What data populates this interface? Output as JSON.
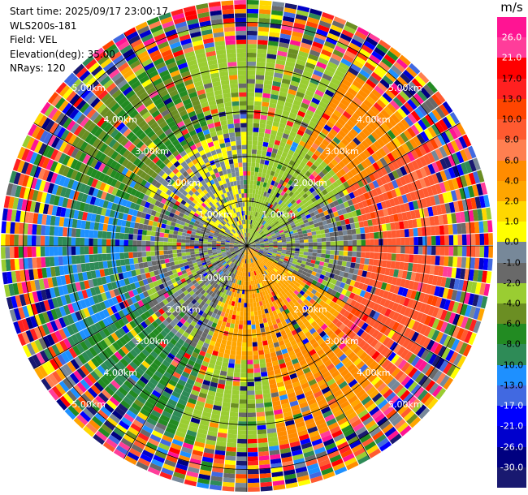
{
  "header": {
    "start_time": "Start time: 2025/09/17 23:00:17",
    "instrument": "WLS200s-181",
    "field": "Field: VEL",
    "elevation": "Elevation(deg): 35.00",
    "nrays": "NRays: 120"
  },
  "chart_data": {
    "type": "heatmap",
    "projection": "polar-ppi",
    "field": "VEL",
    "units": "m/s",
    "n_rays": 120,
    "elevation_deg": 35.0,
    "range_km": [
      0,
      5.5
    ],
    "range_ring_km": [
      1,
      2,
      3,
      4,
      5
    ],
    "range_ring_labels": [
      "1.00km",
      "2.00km",
      "3.00km",
      "4.00km",
      "5.00km"
    ],
    "spoke_angles_deg": [
      0,
      30,
      60,
      90,
      120,
      150,
      180,
      210,
      240,
      270,
      300,
      330
    ],
    "colorbar": {
      "unit": "m/s",
      "ticks": [
        "26.0",
        "21.0",
        "17.0",
        "13.0",
        "10.0",
        "8.0",
        "6.0",
        "4.0",
        "2.0",
        "1.0",
        "0.0",
        "-1.0",
        "-2.0",
        "-4.0",
        "-6.0",
        "-8.0",
        "-10.0",
        "-13.0",
        "-17.0",
        "-21.0",
        "-26.0",
        "-30.0"
      ],
      "colors": [
        "#ff1493",
        "#ff3d9a",
        "#ff0000",
        "#ff2020",
        "#ff4500",
        "#ff5a30",
        "#ff7f50",
        "#ff8c00",
        "#ffa500",
        "#ffd700",
        "#ffff00",
        "#778899",
        "#696969",
        "#9acd32",
        "#6b8e23",
        "#228b22",
        "#2e8b57",
        "#1e90ff",
        "#4169e1",
        "#0000ff",
        "#0000cd",
        "#000080",
        "#191970"
      ]
    },
    "sectors": [
      {
        "azimuth_deg": [
          300,
          360
        ],
        "inner_km": [
          0,
          2.5
        ],
        "velocity_ms": 0.0
      },
      {
        "azimuth_deg": [
          0,
          60
        ],
        "inner_km": [
          0,
          2.5
        ],
        "velocity_ms": -3.0
      },
      {
        "azimuth_deg": [
          60,
          120
        ],
        "inner_km": [
          0,
          2.5
        ],
        "velocity_ms": -1.5
      },
      {
        "azimuth_deg": [
          120,
          200
        ],
        "inner_km": [
          0,
          2.5
        ],
        "velocity_ms": 3.0
      },
      {
        "azimuth_deg": [
          200,
          300
        ],
        "inner_km": [
          0,
          2.5
        ],
        "velocity_ms": -1.5
      },
      {
        "azimuth_deg": [
          290,
          340
        ],
        "outer_km": [
          2.5,
          4.5
        ],
        "velocity_ms": -6.0
      },
      {
        "azimuth_deg": [
          340,
          30
        ],
        "outer_km": [
          2.5,
          4.5
        ],
        "velocity_ms": -3.0
      },
      {
        "azimuth_deg": [
          30,
          60
        ],
        "outer_km": [
          2.5,
          4.5
        ],
        "velocity_ms": 5.0
      },
      {
        "azimuth_deg": [
          60,
          130
        ],
        "outer_km": [
          2.5,
          4.5
        ],
        "velocity_ms": 9.0
      },
      {
        "azimuth_deg": [
          130,
          170
        ],
        "outer_km": [
          2.5,
          4.5
        ],
        "velocity_ms": 4.5
      },
      {
        "azimuth_deg": [
          170,
          200
        ],
        "outer_km": [
          2.5,
          4.5
        ],
        "velocity_ms": -3.0
      },
      {
        "azimuth_deg": [
          200,
          240
        ],
        "outer_km": [
          2.5,
          4.5
        ],
        "velocity_ms": -8.0
      },
      {
        "azimuth_deg": [
          240,
          290
        ],
        "outer_km": [
          2.5,
          4.5
        ],
        "velocity_ms": -10.0
      }
    ]
  }
}
